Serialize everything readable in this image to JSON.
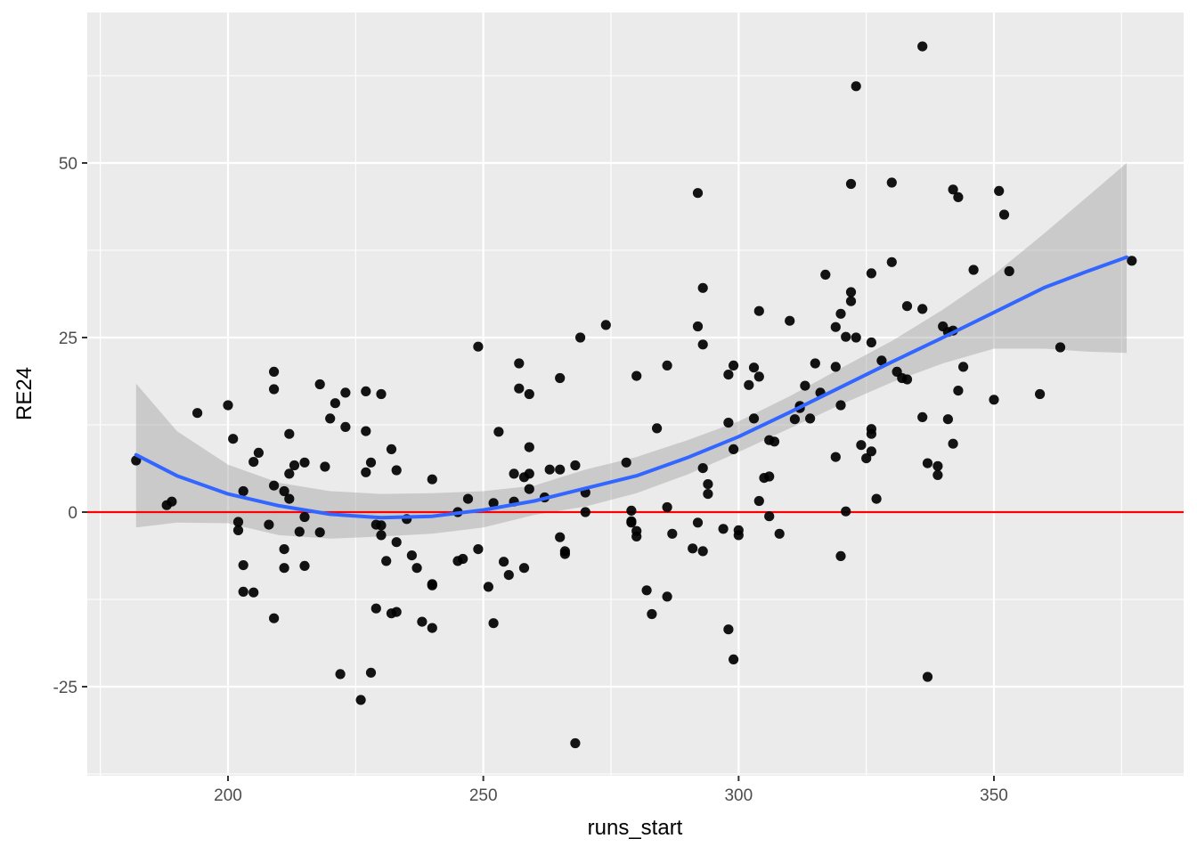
{
  "chart_data": {
    "type": "scatter",
    "title": "",
    "xlabel": "runs_start",
    "ylabel": "RE24",
    "xlim": [
      172,
      380
    ],
    "ylim": [
      -38,
      71
    ],
    "x_ticks": [
      200,
      250,
      300,
      350
    ],
    "x_tick_labels": [
      "200",
      "250",
      "300",
      "350"
    ],
    "y_ticks": [
      -25,
      0,
      25,
      50
    ],
    "y_tick_labels": [
      "-25",
      "0",
      "25",
      "50"
    ],
    "grid": true,
    "legend": "none",
    "reference_line": {
      "y": 0,
      "color": "#ff0000"
    },
    "smooth": {
      "method": "loess",
      "color": "#3366ff",
      "band_color": "#999999",
      "x": [
        182,
        190,
        200,
        210,
        220,
        230,
        240,
        250,
        260,
        270,
        280,
        290,
        300,
        310,
        320,
        330,
        340,
        350,
        360,
        368,
        376
      ],
      "y": [
        8.2,
        5.2,
        2.6,
        0.9,
        -0.3,
        -0.8,
        -0.6,
        0.3,
        1.6,
        3.4,
        5.2,
        7.8,
        10.8,
        14.3,
        17.9,
        21.5,
        25.0,
        28.6,
        32.2,
        34.4,
        36.5
      ],
      "lower": [
        -2.2,
        -1.5,
        -1.6,
        -3.3,
        -3.8,
        -3.5,
        -3.1,
        -2.2,
        -0.4,
        0.8,
        2.7,
        5.4,
        8.6,
        12.0,
        15.4,
        18.6,
        21.3,
        23.4,
        23.4,
        23.0,
        22.8
      ],
      "upper": [
        18.4,
        11.6,
        6.8,
        4.2,
        3.0,
        2.6,
        2.7,
        3.0,
        3.8,
        6.1,
        7.9,
        10.3,
        13.0,
        16.6,
        20.6,
        24.5,
        29.0,
        34.0,
        40.0,
        45.0,
        50.0
      ]
    },
    "series": [
      {
        "points": [
          [
            182,
            7.4
          ],
          [
            188,
            1.0
          ],
          [
            189,
            1.5
          ],
          [
            194,
            14.2
          ],
          [
            200,
            15.3
          ],
          [
            201,
            10.5
          ],
          [
            202,
            -1.4
          ],
          [
            202,
            -2.6
          ],
          [
            203,
            -7.6
          ],
          [
            203,
            -11.4
          ],
          [
            203,
            3.0
          ],
          [
            205,
            -11.5
          ],
          [
            205,
            7.2
          ],
          [
            206,
            8.5
          ],
          [
            208,
            -1.8
          ],
          [
            209,
            20.1
          ],
          [
            209,
            17.6
          ],
          [
            209,
            3.8
          ],
          [
            209,
            -15.2
          ],
          [
            211,
            -5.3
          ],
          [
            211,
            3.0
          ],
          [
            211,
            -8.0
          ],
          [
            212,
            11.2
          ],
          [
            212,
            1.9
          ],
          [
            212,
            5.5
          ],
          [
            213,
            6.7
          ],
          [
            214,
            -2.8
          ],
          [
            215,
            -0.7
          ],
          [
            215,
            7.1
          ],
          [
            215,
            -7.7
          ],
          [
            218,
            18.3
          ],
          [
            218,
            -2.9
          ],
          [
            219,
            6.5
          ],
          [
            220,
            13.4
          ],
          [
            221,
            15.6
          ],
          [
            222,
            -23.2
          ],
          [
            223,
            12.2
          ],
          [
            223,
            17.1
          ],
          [
            226,
            -26.9
          ],
          [
            227,
            17.3
          ],
          [
            227,
            11.6
          ],
          [
            227,
            5.7
          ],
          [
            228,
            -23.0
          ],
          [
            228,
            7.1
          ],
          [
            229,
            -13.8
          ],
          [
            229,
            -1.8
          ],
          [
            230,
            16.9
          ],
          [
            230,
            -3.3
          ],
          [
            230,
            -1.9
          ],
          [
            231,
            -7.0
          ],
          [
            232,
            -14.5
          ],
          [
            232,
            9.0
          ],
          [
            233,
            -14.3
          ],
          [
            233,
            -4.3
          ],
          [
            233,
            6.0
          ],
          [
            235,
            -1.0
          ],
          [
            236,
            -6.2
          ],
          [
            237,
            -8.0
          ],
          [
            238,
            -15.7
          ],
          [
            240,
            -10.3
          ],
          [
            240,
            -10.5
          ],
          [
            240,
            -16.6
          ],
          [
            240,
            4.7
          ],
          [
            245,
            0.0
          ],
          [
            245,
            -7.0
          ],
          [
            246,
            -6.7
          ],
          [
            247,
            1.9
          ],
          [
            249,
            -5.3
          ],
          [
            249,
            23.7
          ],
          [
            251,
            -10.7
          ],
          [
            252,
            -15.9
          ],
          [
            253,
            11.5
          ],
          [
            252,
            1.3
          ],
          [
            254,
            -7.1
          ],
          [
            255,
            -9.0
          ],
          [
            256,
            1.5
          ],
          [
            256,
            5.5
          ],
          [
            257,
            21.3
          ],
          [
            257,
            17.7
          ],
          [
            258,
            5.0
          ],
          [
            258,
            -8.0
          ],
          [
            259,
            9.3
          ],
          [
            259,
            5.5
          ],
          [
            259,
            16.9
          ],
          [
            259,
            3.3
          ],
          [
            262,
            2.1
          ],
          [
            263,
            6.1
          ],
          [
            265,
            19.2
          ],
          [
            265,
            6.1
          ],
          [
            265,
            -3.6
          ],
          [
            266,
            -5.6
          ],
          [
            266,
            -6.0
          ],
          [
            268,
            -33.1
          ],
          [
            268,
            6.7
          ],
          [
            269,
            25.0
          ],
          [
            270,
            2.8
          ],
          [
            270,
            0.0
          ],
          [
            274,
            26.8
          ],
          [
            278,
            7.1
          ],
          [
            279,
            0.2
          ],
          [
            279,
            -1.3
          ],
          [
            279,
            -1.5
          ],
          [
            280,
            -3.5
          ],
          [
            280,
            -2.7
          ],
          [
            280,
            19.5
          ],
          [
            282,
            -11.2
          ],
          [
            283,
            -14.6
          ],
          [
            284,
            12.0
          ],
          [
            286,
            21.0
          ],
          [
            286,
            0.7
          ],
          [
            286,
            -12.1
          ],
          [
            287,
            -3.1
          ],
          [
            292,
            45.7
          ],
          [
            291,
            -5.2
          ],
          [
            292,
            26.6
          ],
          [
            292,
            -1.5
          ],
          [
            293,
            32.1
          ],
          [
            293,
            24.0
          ],
          [
            293,
            6.3
          ],
          [
            293,
            -5.6
          ],
          [
            294,
            4.0
          ],
          [
            294,
            2.6
          ],
          [
            297,
            -2.4
          ],
          [
            298,
            19.7
          ],
          [
            298,
            12.8
          ],
          [
            298,
            -16.8
          ],
          [
            299,
            21.0
          ],
          [
            299,
            9.0
          ],
          [
            299,
            -21.1
          ],
          [
            300,
            -3.3
          ],
          [
            300,
            -2.6
          ],
          [
            302,
            18.2
          ],
          [
            303,
            13.4
          ],
          [
            303,
            20.7
          ],
          [
            304,
            19.4
          ],
          [
            304,
            28.8
          ],
          [
            304,
            1.6
          ],
          [
            305,
            4.9
          ],
          [
            306,
            5.1
          ],
          [
            306,
            10.3
          ],
          [
            306,
            -0.6
          ],
          [
            307,
            10.1
          ],
          [
            308,
            -3.1
          ],
          [
            310,
            27.4
          ],
          [
            311,
            13.3
          ],
          [
            312,
            14.9
          ],
          [
            312,
            15.2
          ],
          [
            313,
            18.1
          ],
          [
            314,
            13.4
          ],
          [
            315,
            21.3
          ],
          [
            317,
            34.0
          ],
          [
            316,
            17.1
          ],
          [
            319,
            20.8
          ],
          [
            319,
            26.5
          ],
          [
            319,
            7.9
          ],
          [
            320,
            -6.3
          ],
          [
            320,
            28.4
          ],
          [
            320,
            15.3
          ],
          [
            321,
            0.1
          ],
          [
            322,
            30.2
          ],
          [
            321,
            25.1
          ],
          [
            322,
            47.0
          ],
          [
            323,
            61.0
          ],
          [
            322,
            31.5
          ],
          [
            323,
            25.0
          ],
          [
            324,
            9.6
          ],
          [
            325,
            7.7
          ],
          [
            326,
            34.2
          ],
          [
            326,
            24.3
          ],
          [
            326,
            8.7
          ],
          [
            326,
            11.9
          ],
          [
            326,
            11.2
          ],
          [
            327,
            1.9
          ],
          [
            328,
            21.7
          ],
          [
            330,
            47.2
          ],
          [
            330,
            35.8
          ],
          [
            331,
            20.1
          ],
          [
            332,
            19.2
          ],
          [
            333,
            19.0
          ],
          [
            333,
            29.5
          ],
          [
            336,
            29.1
          ],
          [
            336,
            66.7
          ],
          [
            336,
            13.6
          ],
          [
            337,
            -23.6
          ],
          [
            337,
            7.0
          ],
          [
            339,
            6.6
          ],
          [
            339,
            5.3
          ],
          [
            340,
            26.6
          ],
          [
            341,
            25.8
          ],
          [
            341,
            13.3
          ],
          [
            342,
            9.8
          ],
          [
            342,
            46.2
          ],
          [
            342,
            26.0
          ],
          [
            343,
            45.1
          ],
          [
            343,
            17.4
          ],
          [
            344,
            20.8
          ],
          [
            346,
            34.7
          ],
          [
            350,
            16.1
          ],
          [
            351,
            46.0
          ],
          [
            352,
            42.6
          ],
          [
            353,
            34.5
          ],
          [
            359,
            16.9
          ],
          [
            363,
            23.6
          ],
          [
            377,
            36.0
          ]
        ]
      }
    ]
  }
}
